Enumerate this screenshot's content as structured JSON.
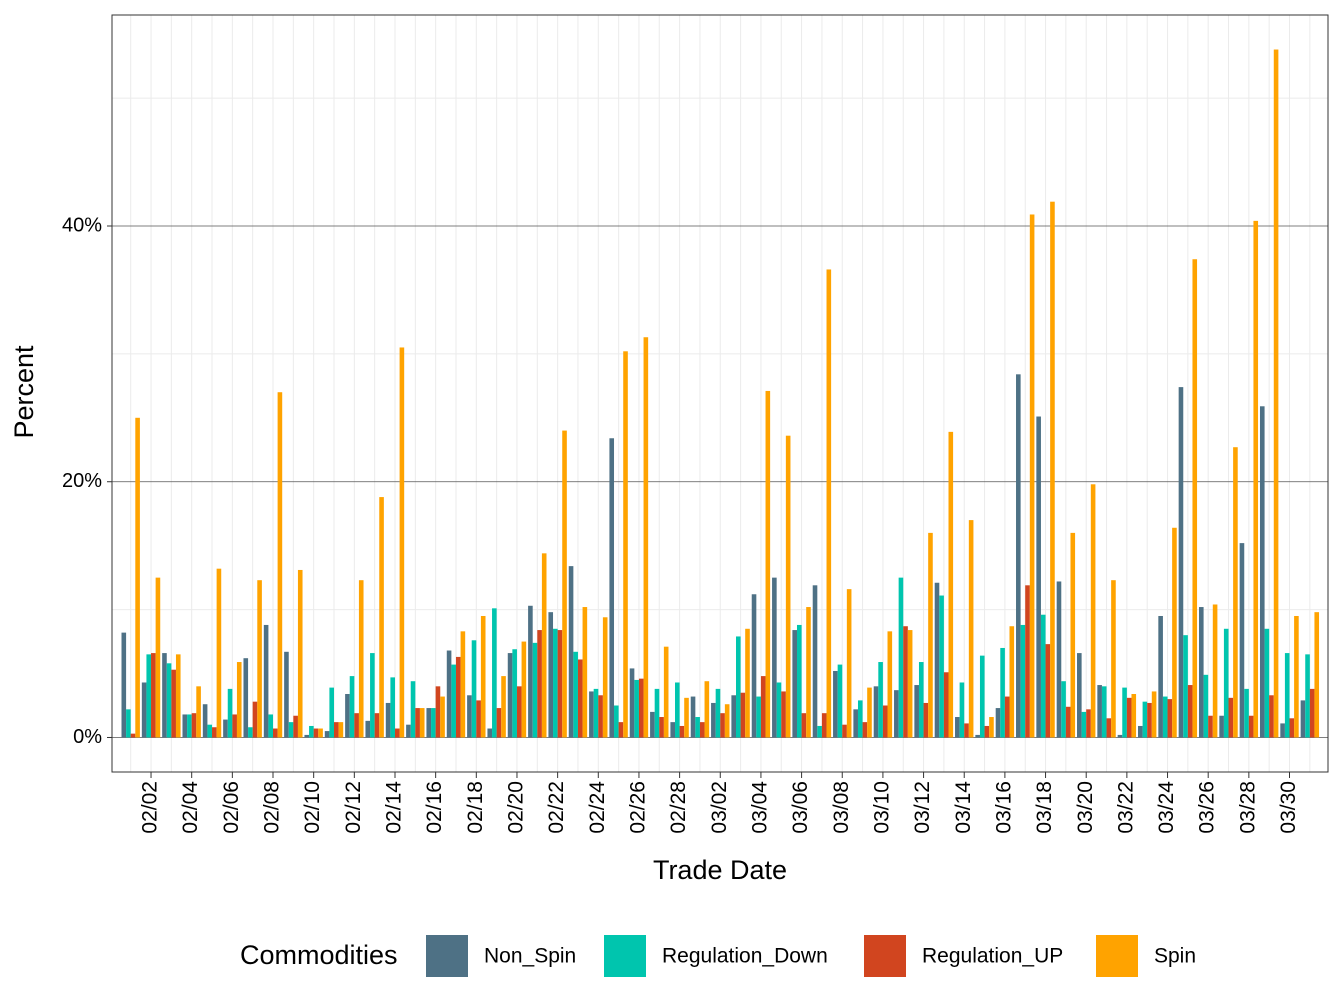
{
  "chart_data": {
    "type": "bar",
    "x_label": "Trade Date",
    "y_label": "Percent",
    "legend_title": "Commodities",
    "categories": [
      null,
      "02/02",
      null,
      "02/04",
      null,
      "02/06",
      null,
      "02/08",
      null,
      "02/10",
      null,
      "02/12",
      null,
      "02/14",
      null,
      "02/16",
      null,
      "02/18",
      null,
      "02/20",
      null,
      "02/22",
      null,
      "02/24",
      null,
      "02/26",
      null,
      "02/28",
      null,
      "03/02",
      null,
      "03/04",
      null,
      "03/06",
      null,
      "03/08",
      null,
      "03/10",
      null,
      "03/12",
      null,
      "03/14",
      null,
      "03/16",
      null,
      "03/18",
      null,
      "03/20",
      null,
      "03/22",
      null,
      "03/24",
      null,
      "03/26",
      null,
      "03/28",
      null,
      "03/30",
      null
    ],
    "series": [
      {
        "name": "Non_Spin",
        "color": "#4e7185",
        "values": [
          8.2,
          4.3,
          6.6,
          1.8,
          2.6,
          1.4,
          6.2,
          8.8,
          6.7,
          0.2,
          0.5,
          3.4,
          1.3,
          2.7,
          1.0,
          2.3,
          6.8,
          3.3,
          0.7,
          6.6,
          10.3,
          9.8,
          13.4,
          3.6,
          23.4,
          5.4,
          2.0,
          1.2,
          3.2,
          2.7,
          3.3,
          11.2,
          12.5,
          8.4,
          11.9,
          5.2,
          2.2,
          4.0,
          3.7,
          4.1,
          12.1,
          1.6,
          0.2,
          2.3,
          28.4,
          25.1,
          12.2,
          6.6,
          4.1,
          0.2,
          0.9,
          9.5,
          27.4,
          10.2,
          1.7,
          15.2,
          25.9,
          1.1,
          2.9
        ]
      },
      {
        "name": "Regulation_Down",
        "color": "#00c5ae",
        "values": [
          2.2,
          6.5,
          5.8,
          1.8,
          1.0,
          3.8,
          0.8,
          1.8,
          1.2,
          0.9,
          3.9,
          4.8,
          6.6,
          4.7,
          4.4,
          2.3,
          5.7,
          7.6,
          10.1,
          6.9,
          7.4,
          8.5,
          6.7,
          3.8,
          2.5,
          4.5,
          3.8,
          4.3,
          1.6,
          3.8,
          7.9,
          3.2,
          4.3,
          8.8,
          0.9,
          5.7,
          2.9,
          5.9,
          12.5,
          5.9,
          11.1,
          4.3,
          6.4,
          7.0,
          8.8,
          9.6,
          4.4,
          2.0,
          4.0,
          3.9,
          2.8,
          3.2,
          8.0,
          4.9,
          8.5,
          3.8,
          8.5,
          6.6,
          6.5
        ]
      },
      {
        "name": "Regulation_UP",
        "color": "#d1451f",
        "values": [
          0.3,
          6.6,
          5.3,
          1.9,
          0.8,
          1.8,
          2.8,
          0.7,
          1.7,
          0.7,
          1.2,
          1.9,
          1.9,
          0.7,
          2.3,
          4.0,
          6.3,
          2.9,
          2.3,
          4.0,
          8.4,
          8.4,
          6.1,
          3.3,
          1.2,
          4.6,
          1.6,
          0.9,
          1.2,
          1.9,
          3.5,
          4.8,
          3.6,
          1.9,
          1.9,
          1.0,
          1.2,
          2.5,
          8.7,
          2.7,
          5.1,
          1.1,
          0.9,
          3.2,
          11.9,
          7.3,
          2.4,
          2.2,
          1.5,
          3.1,
          2.7,
          3.0,
          4.1,
          1.7,
          3.1,
          1.7,
          3.3,
          1.5,
          3.8
        ]
      },
      {
        "name": "Spin",
        "color": "#ffa300",
        "values": [
          25.0,
          12.5,
          6.5,
          4.0,
          13.2,
          5.9,
          12.3,
          27.0,
          13.1,
          0.7,
          1.2,
          12.3,
          18.8,
          30.5,
          2.3,
          3.2,
          8.3,
          9.5,
          4.8,
          7.5,
          14.4,
          24.0,
          10.2,
          9.4,
          30.2,
          31.3,
          7.1,
          3.1,
          4.4,
          2.6,
          8.5,
          27.1,
          23.6,
          10.2,
          36.6,
          11.6,
          3.9,
          8.3,
          8.4,
          16.0,
          23.9,
          17.0,
          1.6,
          8.7,
          40.9,
          41.9,
          16.0,
          19.8,
          12.3,
          3.4,
          3.6,
          16.4,
          37.4,
          10.4,
          22.7,
          40.4,
          53.8,
          9.5,
          9.8
        ]
      }
    ],
    "ylim": [
      -2.7,
      56.5
    ],
    "yticks": [
      {
        "value": 0,
        "label": "0%"
      },
      {
        "value": 20,
        "label": "20%"
      },
      {
        "value": 40,
        "label": "40%"
      }
    ],
    "minor_yticks": [
      10,
      30,
      50
    ],
    "grid": true,
    "legend": "bottom"
  }
}
